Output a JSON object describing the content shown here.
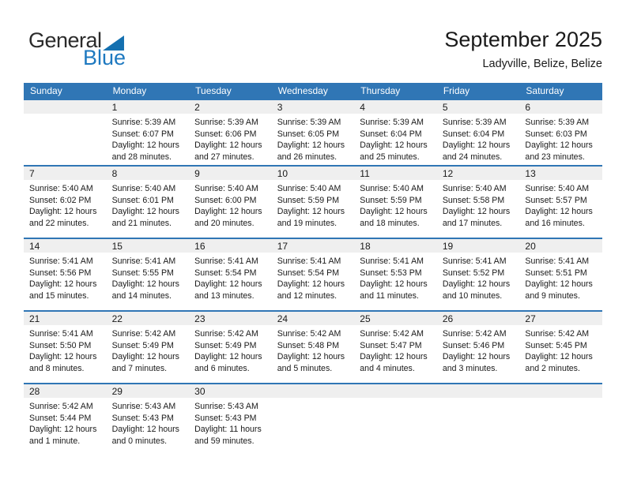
{
  "logo": {
    "part1": "General",
    "part2": "Blue",
    "colors": {
      "dark": "#2b2b2b",
      "blue_text": "#1e79c0",
      "triangle": "#1470b0"
    }
  },
  "header": {
    "title": "September 2025",
    "subtitle": "Ladyville, Belize, Belize"
  },
  "calendar": {
    "colors": {
      "header_bg": "#3076b5",
      "band_bg": "#efefef",
      "separator": "#3076b5"
    },
    "weekdays": [
      "Sunday",
      "Monday",
      "Tuesday",
      "Wednesday",
      "Thursday",
      "Friday",
      "Saturday"
    ],
    "weeks": [
      [
        {
          "day": "",
          "lines": []
        },
        {
          "day": "1",
          "lines": [
            "Sunrise: 5:39 AM",
            "Sunset: 6:07 PM",
            "Daylight: 12 hours",
            "and 28 minutes."
          ]
        },
        {
          "day": "2",
          "lines": [
            "Sunrise: 5:39 AM",
            "Sunset: 6:06 PM",
            "Daylight: 12 hours",
            "and 27 minutes."
          ]
        },
        {
          "day": "3",
          "lines": [
            "Sunrise: 5:39 AM",
            "Sunset: 6:05 PM",
            "Daylight: 12 hours",
            "and 26 minutes."
          ]
        },
        {
          "day": "4",
          "lines": [
            "Sunrise: 5:39 AM",
            "Sunset: 6:04 PM",
            "Daylight: 12 hours",
            "and 25 minutes."
          ]
        },
        {
          "day": "5",
          "lines": [
            "Sunrise: 5:39 AM",
            "Sunset: 6:04 PM",
            "Daylight: 12 hours",
            "and 24 minutes."
          ]
        },
        {
          "day": "6",
          "lines": [
            "Sunrise: 5:39 AM",
            "Sunset: 6:03 PM",
            "Daylight: 12 hours",
            "and 23 minutes."
          ]
        }
      ],
      [
        {
          "day": "7",
          "lines": [
            "Sunrise: 5:40 AM",
            "Sunset: 6:02 PM",
            "Daylight: 12 hours",
            "and 22 minutes."
          ]
        },
        {
          "day": "8",
          "lines": [
            "Sunrise: 5:40 AM",
            "Sunset: 6:01 PM",
            "Daylight: 12 hours",
            "and 21 minutes."
          ]
        },
        {
          "day": "9",
          "lines": [
            "Sunrise: 5:40 AM",
            "Sunset: 6:00 PM",
            "Daylight: 12 hours",
            "and 20 minutes."
          ]
        },
        {
          "day": "10",
          "lines": [
            "Sunrise: 5:40 AM",
            "Sunset: 5:59 PM",
            "Daylight: 12 hours",
            "and 19 minutes."
          ]
        },
        {
          "day": "11",
          "lines": [
            "Sunrise: 5:40 AM",
            "Sunset: 5:59 PM",
            "Daylight: 12 hours",
            "and 18 minutes."
          ]
        },
        {
          "day": "12",
          "lines": [
            "Sunrise: 5:40 AM",
            "Sunset: 5:58 PM",
            "Daylight: 12 hours",
            "and 17 minutes."
          ]
        },
        {
          "day": "13",
          "lines": [
            "Sunrise: 5:40 AM",
            "Sunset: 5:57 PM",
            "Daylight: 12 hours",
            "and 16 minutes."
          ]
        }
      ],
      [
        {
          "day": "14",
          "lines": [
            "Sunrise: 5:41 AM",
            "Sunset: 5:56 PM",
            "Daylight: 12 hours",
            "and 15 minutes."
          ]
        },
        {
          "day": "15",
          "lines": [
            "Sunrise: 5:41 AM",
            "Sunset: 5:55 PM",
            "Daylight: 12 hours",
            "and 14 minutes."
          ]
        },
        {
          "day": "16",
          "lines": [
            "Sunrise: 5:41 AM",
            "Sunset: 5:54 PM",
            "Daylight: 12 hours",
            "and 13 minutes."
          ]
        },
        {
          "day": "17",
          "lines": [
            "Sunrise: 5:41 AM",
            "Sunset: 5:54 PM",
            "Daylight: 12 hours",
            "and 12 minutes."
          ]
        },
        {
          "day": "18",
          "lines": [
            "Sunrise: 5:41 AM",
            "Sunset: 5:53 PM",
            "Daylight: 12 hours",
            "and 11 minutes."
          ]
        },
        {
          "day": "19",
          "lines": [
            "Sunrise: 5:41 AM",
            "Sunset: 5:52 PM",
            "Daylight: 12 hours",
            "and 10 minutes."
          ]
        },
        {
          "day": "20",
          "lines": [
            "Sunrise: 5:41 AM",
            "Sunset: 5:51 PM",
            "Daylight: 12 hours",
            "and 9 minutes."
          ]
        }
      ],
      [
        {
          "day": "21",
          "lines": [
            "Sunrise: 5:41 AM",
            "Sunset: 5:50 PM",
            "Daylight: 12 hours",
            "and 8 minutes."
          ]
        },
        {
          "day": "22",
          "lines": [
            "Sunrise: 5:42 AM",
            "Sunset: 5:49 PM",
            "Daylight: 12 hours",
            "and 7 minutes."
          ]
        },
        {
          "day": "23",
          "lines": [
            "Sunrise: 5:42 AM",
            "Sunset: 5:49 PM",
            "Daylight: 12 hours",
            "and 6 minutes."
          ]
        },
        {
          "day": "24",
          "lines": [
            "Sunrise: 5:42 AM",
            "Sunset: 5:48 PM",
            "Daylight: 12 hours",
            "and 5 minutes."
          ]
        },
        {
          "day": "25",
          "lines": [
            "Sunrise: 5:42 AM",
            "Sunset: 5:47 PM",
            "Daylight: 12 hours",
            "and 4 minutes."
          ]
        },
        {
          "day": "26",
          "lines": [
            "Sunrise: 5:42 AM",
            "Sunset: 5:46 PM",
            "Daylight: 12 hours",
            "and 3 minutes."
          ]
        },
        {
          "day": "27",
          "lines": [
            "Sunrise: 5:42 AM",
            "Sunset: 5:45 PM",
            "Daylight: 12 hours",
            "and 2 minutes."
          ]
        }
      ],
      [
        {
          "day": "28",
          "lines": [
            "Sunrise: 5:42 AM",
            "Sunset: 5:44 PM",
            "Daylight: 12 hours",
            "and 1 minute."
          ]
        },
        {
          "day": "29",
          "lines": [
            "Sunrise: 5:43 AM",
            "Sunset: 5:43 PM",
            "Daylight: 12 hours",
            "and 0 minutes."
          ]
        },
        {
          "day": "30",
          "lines": [
            "Sunrise: 5:43 AM",
            "Sunset: 5:43 PM",
            "Daylight: 11 hours",
            "and 59 minutes."
          ]
        },
        {
          "day": "",
          "lines": []
        },
        {
          "day": "",
          "lines": []
        },
        {
          "day": "",
          "lines": []
        },
        {
          "day": "",
          "lines": []
        }
      ]
    ]
  }
}
